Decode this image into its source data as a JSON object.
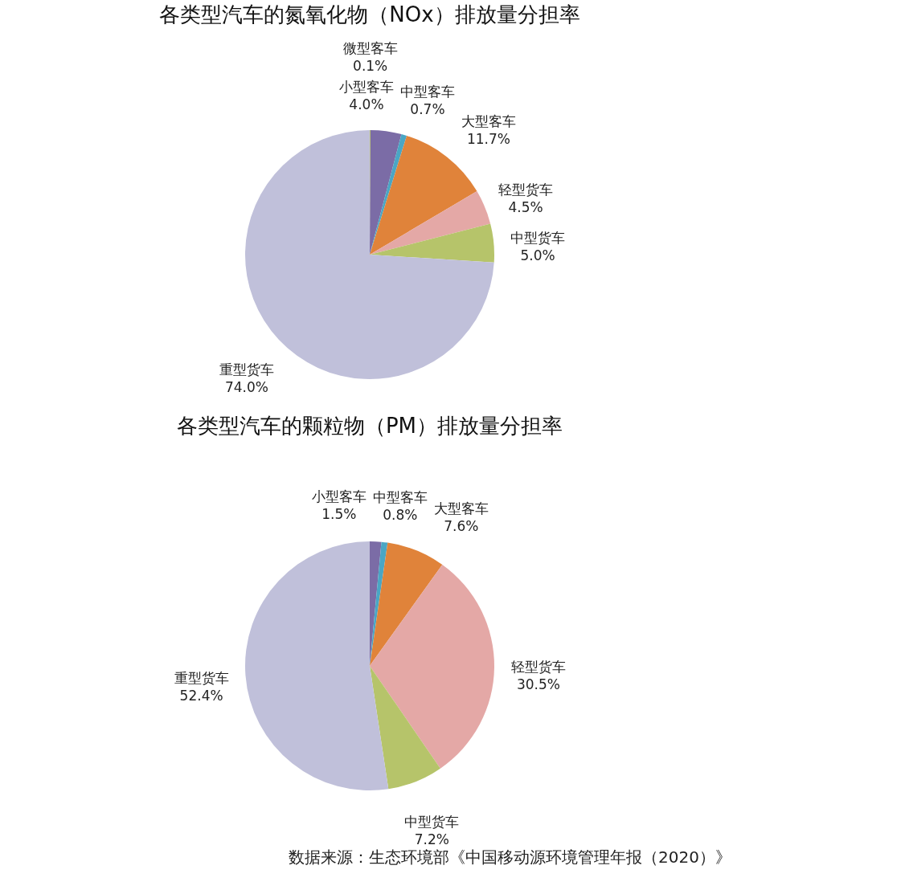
{
  "chart_data": [
    {
      "type": "pie",
      "title": "各类型汽车的氮氧化物（NOx）排放量分担率",
      "categories": [
        "微型客车",
        "小型客车",
        "中型客车",
        "大型客车",
        "轻型货车",
        "中型货车",
        "重型货车"
      ],
      "values": [
        0.1,
        4.0,
        0.7,
        11.7,
        4.5,
        5.0,
        74.0
      ],
      "value_labels": [
        "0.1%",
        "4.0%",
        "0.7%",
        "11.7%",
        "4.5%",
        "5.0%",
        "74.0%"
      ],
      "colors": [
        "#b8c46c",
        "#7b6ca6",
        "#4aa6c4",
        "#e0833a",
        "#e4a8a6",
        "#b6c46a",
        "#c0c0da"
      ]
    },
    {
      "type": "pie",
      "title": "各类型汽车的颗粒物（PM）排放量分担率",
      "categories": [
        "小型客车",
        "中型客车",
        "大型客车",
        "轻型货车",
        "中型货车",
        "重型货车"
      ],
      "values": [
        1.5,
        0.8,
        7.6,
        30.5,
        7.2,
        52.4
      ],
      "value_labels": [
        "1.5%",
        "0.8%",
        "7.6%",
        "30.5%",
        "7.2%",
        "52.4%"
      ],
      "colors": [
        "#7b6ca6",
        "#4aa6c4",
        "#e0833a",
        "#e4a8a6",
        "#b6c46a",
        "#c0c0da"
      ],
      "annotations": [
        "数据来源：生态环境部《中国移动源环境管理年报（2020）》"
      ]
    }
  ]
}
